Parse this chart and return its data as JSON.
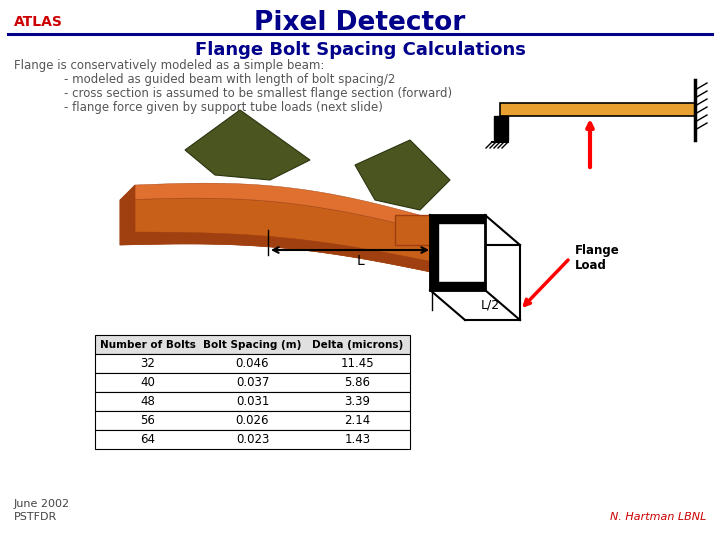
{
  "title": "Pixel Detector",
  "subtitle": "Flange Bolt Spacing Calculations",
  "atlas_label": "ATLAS",
  "description_line1": "Flange is conservatively modeled as a simple beam:",
  "description_line2": "- modeled as guided beam with length of bolt spacing/2",
  "description_line3": "- cross section is assumed to be smallest flange section (forward)",
  "description_line4": "- flange force given by support tube loads (next slide)",
  "table_headers": [
    "Number of Bolts",
    "Bolt Spacing (m)",
    "Delta (microns)"
  ],
  "table_data": [
    [
      32,
      0.046,
      11.45
    ],
    [
      40,
      0.037,
      5.86
    ],
    [
      48,
      0.031,
      3.39
    ],
    [
      56,
      0.026,
      2.14
    ],
    [
      64,
      0.023,
      1.43
    ]
  ],
  "footer_left": "June 2002\nPSTFDR",
  "footer_right": "N. Hartman LBNL",
  "bg_color": "#ffffff",
  "title_color": "#00008B",
  "atlas_color": "#CC0000",
  "body_text_color": "#555555",
  "line_color": "#00008B",
  "flange_load_label": "Flange\nLoad",
  "l_label": "L",
  "l2_label": "L/2",
  "orange_flange": "#C8601A",
  "orange_dark": "#A04010",
  "orange_light": "#E07030",
  "green_color": "#4A5520",
  "green_dark": "#2A3510"
}
